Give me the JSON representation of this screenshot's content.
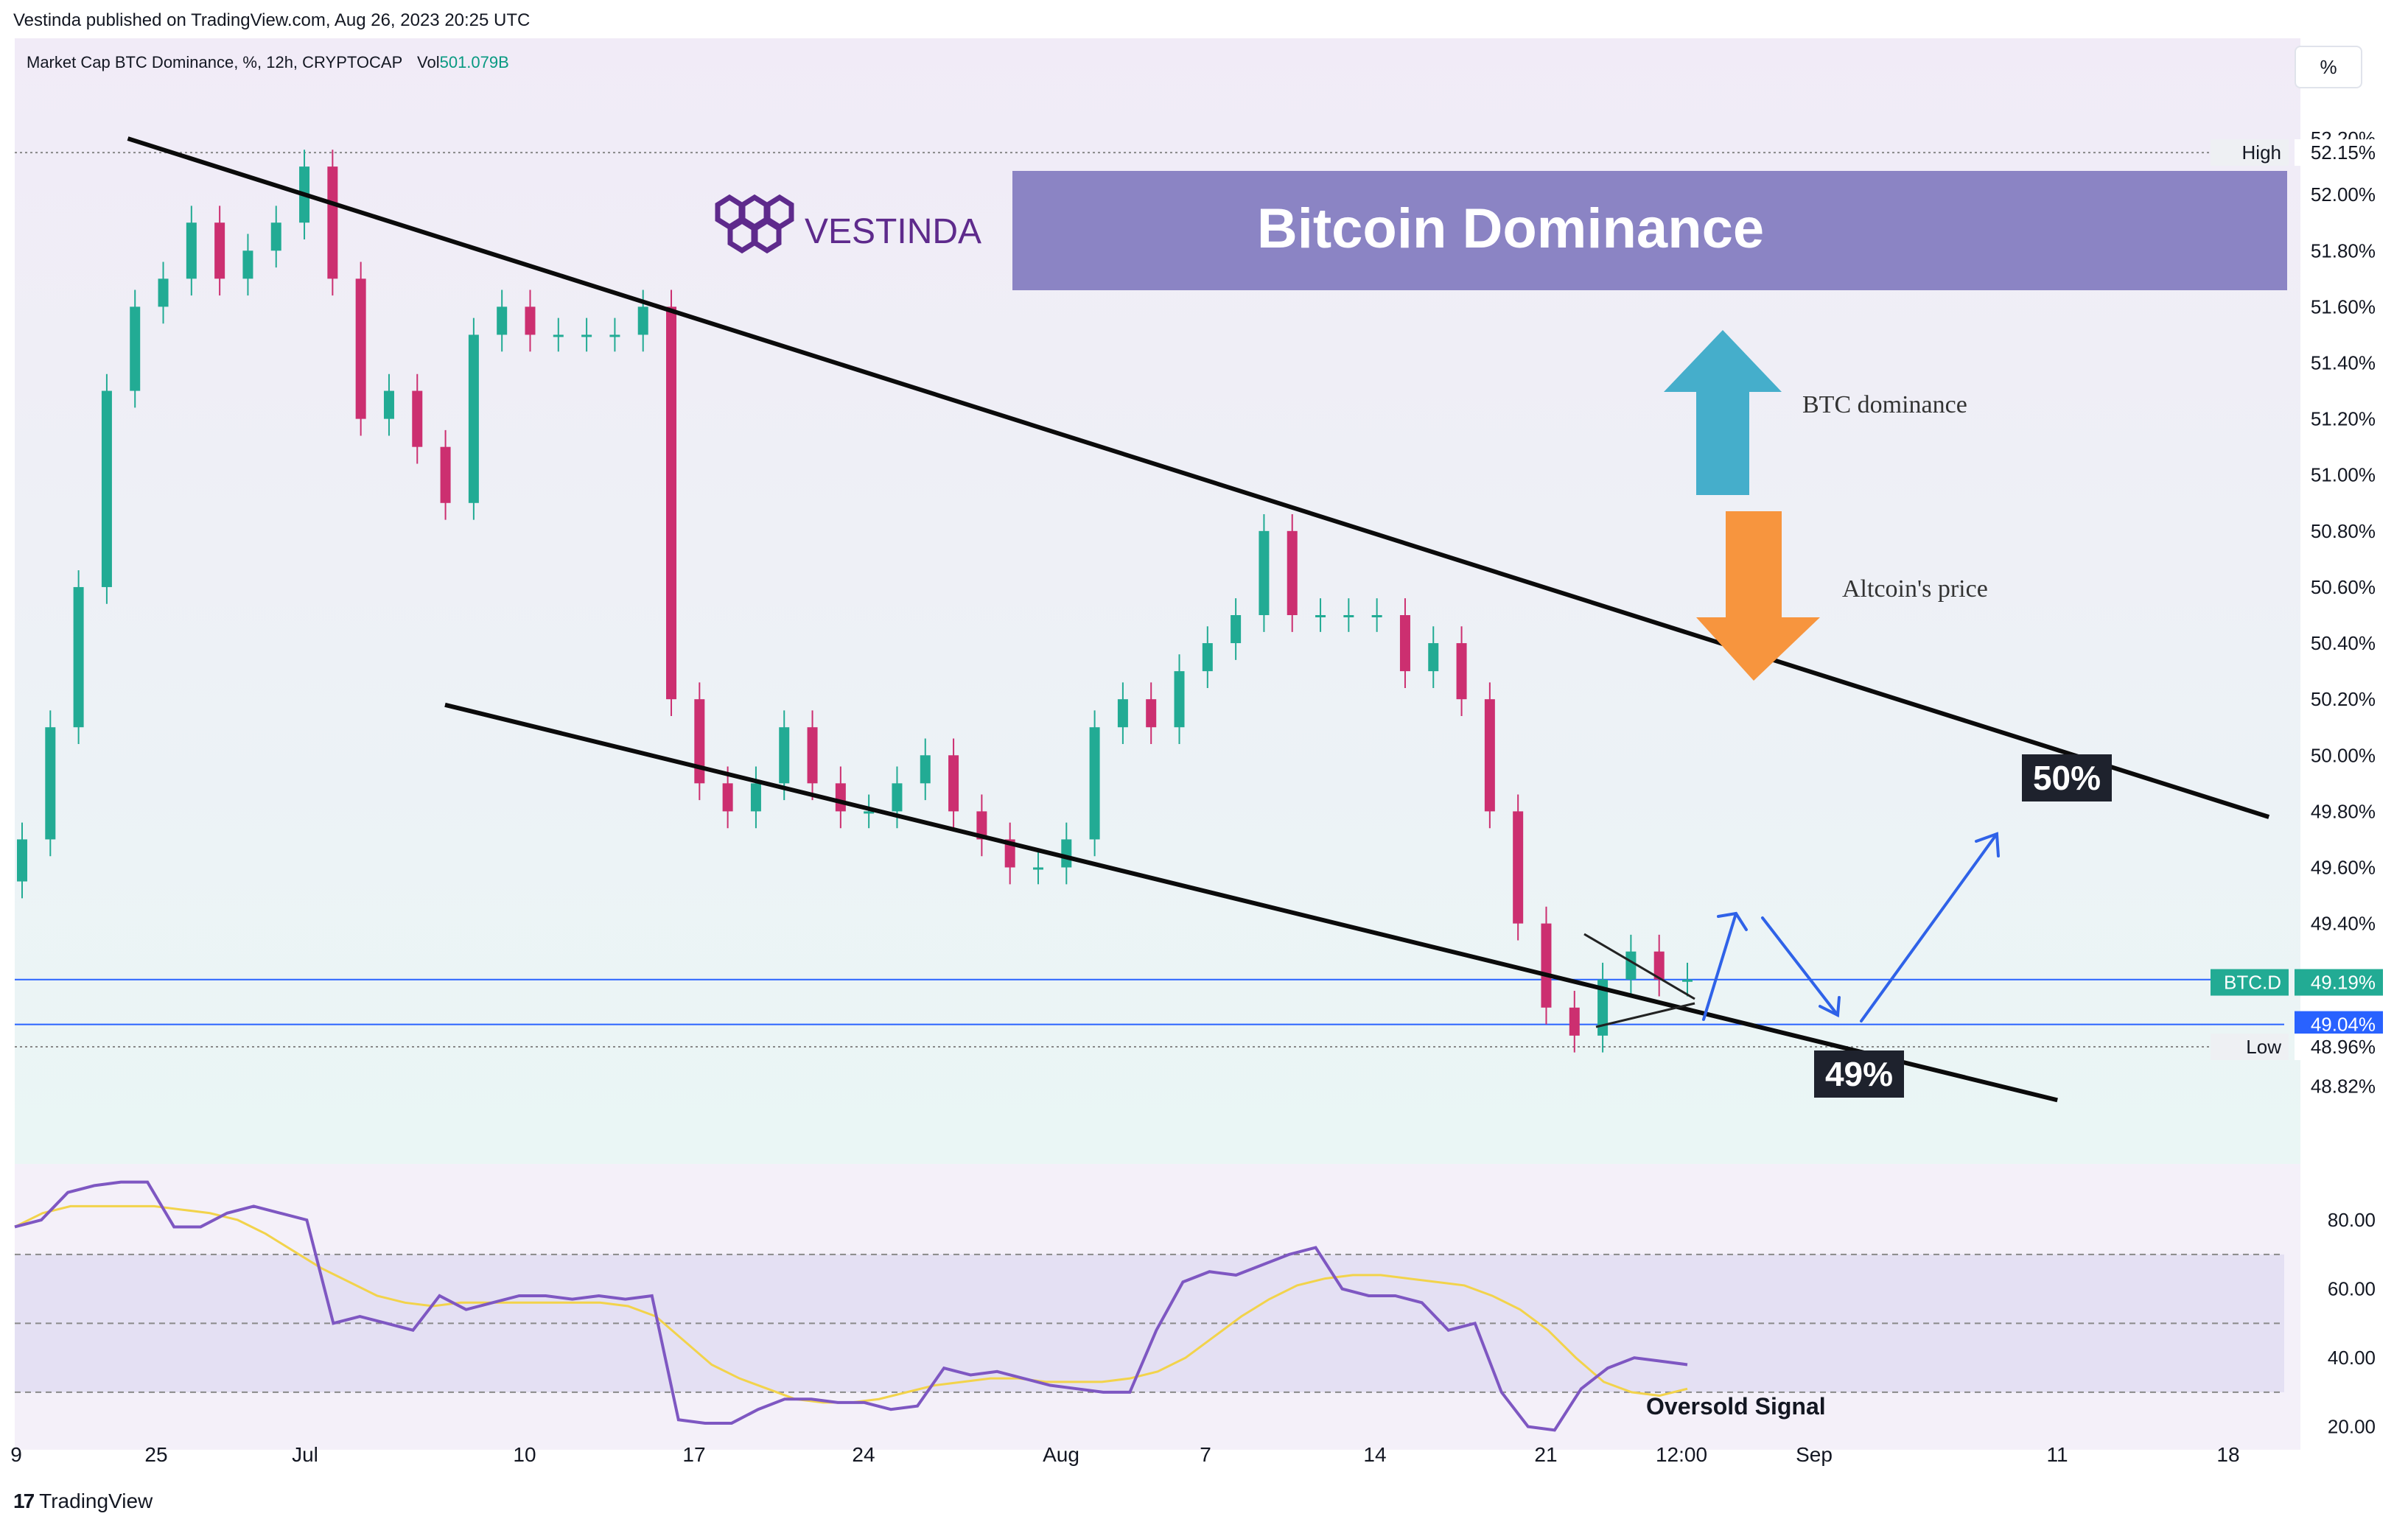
{
  "header": {
    "publisher": "Vestinda published on TradingView.com, Aug 26, 2023 20:25 UTC",
    "symbol_line": "Market Cap BTC Dominance, %, 12h, CRYPTOCAP",
    "vol_label": "Vol",
    "vol_value": "501.079B",
    "scale_button": "%"
  },
  "footer": {
    "brand": "TradingView"
  },
  "overlay": {
    "logo_text": "VESTINDA",
    "banner_title": "Bitcoin Dominance",
    "up_arrow_label": "BTC dominance",
    "down_arrow_label": "Altcoin's price",
    "target_high_badge": "50%",
    "target_low_badge": "49%",
    "oversold_label": "Oversold Signal"
  },
  "chart_data": [
    {
      "type": "candlestick",
      "title": "",
      "ylim": [
        48.7,
        52.3
      ],
      "y_ticks": [
        "52.20%",
        "52.00%",
        "51.80%",
        "51.60%",
        "51.40%",
        "51.20%",
        "51.00%",
        "50.80%",
        "50.60%",
        "50.40%",
        "50.20%",
        "50.00%",
        "49.80%",
        "49.60%",
        "49.40%",
        "49.04%",
        "48.96%",
        "48.82%"
      ],
      "x_ticks": [
        "9",
        "25",
        "Jul",
        "10",
        "17",
        "24",
        "Aug",
        "7",
        "14",
        "21",
        "12:00",
        "Sep",
        "11",
        "18"
      ],
      "price_labels": [
        {
          "name": "High",
          "value": "52.15%"
        },
        {
          "name": "BTC.D",
          "value": "49.19%"
        },
        {
          "name": "",
          "value": "49.04%"
        },
        {
          "name": "Low",
          "value": "48.96%"
        }
      ],
      "closes": [
        49.7,
        50.1,
        50.6,
        51.3,
        51.6,
        51.7,
        51.9,
        51.7,
        51.8,
        51.9,
        52.1,
        51.7,
        51.2,
        51.3,
        51.1,
        50.9,
        51.5,
        51.6,
        51.5,
        51.5,
        51.5,
        51.5,
        51.6,
        50.2,
        49.9,
        49.8,
        49.9,
        50.1,
        49.9,
        49.8,
        49.8,
        49.9,
        50.0,
        49.8,
        49.7,
        49.6,
        49.6,
        49.7,
        50.1,
        50.2,
        50.1,
        50.3,
        50.4,
        50.5,
        50.8,
        50.5,
        50.5,
        50.5,
        50.5,
        50.3,
        50.4,
        50.2,
        49.8,
        49.4,
        49.1,
        49.0,
        49.2,
        49.3,
        49.2,
        49.2
      ],
      "channel_lines": [
        {
          "from": [
            "Jun 21",
            52.2
          ],
          "to": [
            "Sep 10",
            49.78
          ]
        },
        {
          "from": [
            "Jul 3",
            50.18
          ],
          "to": [
            "Sep 2",
            48.77
          ]
        }
      ],
      "horizontal_levels": [
        49.2,
        49.04
      ]
    },
    {
      "type": "line",
      "title": "",
      "ylim": [
        15,
        92
      ],
      "y_ticks": [
        "80.00",
        "60.00",
        "40.00",
        "20.00"
      ],
      "bands": [
        30,
        50,
        70
      ],
      "series": [
        {
          "values": [
            78,
            80,
            88,
            90,
            91,
            91,
            78,
            78,
            82,
            84,
            82,
            80,
            50,
            52,
            50,
            48,
            58,
            54,
            56,
            58,
            58,
            57,
            58,
            57,
            58,
            22,
            21,
            21,
            25,
            28,
            28,
            27,
            27,
            25,
            26,
            37,
            35,
            36,
            34,
            32,
            31,
            30,
            30,
            48,
            62,
            65,
            64,
            67,
            70,
            72,
            60,
            58,
            58,
            56,
            48,
            50,
            30,
            20,
            19,
            31,
            37,
            40,
            39,
            38
          ]
        },
        {
          "values": [
            78,
            82,
            84,
            84,
            84,
            84,
            83,
            82,
            80,
            76,
            71,
            66,
            62,
            58,
            56,
            55,
            56,
            56,
            56,
            56,
            56,
            56,
            55,
            52,
            45,
            38,
            34,
            31,
            28,
            27,
            27,
            28,
            30,
            32,
            33,
            34,
            34,
            33,
            33,
            33,
            34,
            36,
            40,
            46,
            52,
            57,
            61,
            63,
            64,
            64,
            63,
            62,
            61,
            58,
            54,
            48,
            40,
            33,
            30,
            29,
            31
          ]
        }
      ]
    }
  ]
}
